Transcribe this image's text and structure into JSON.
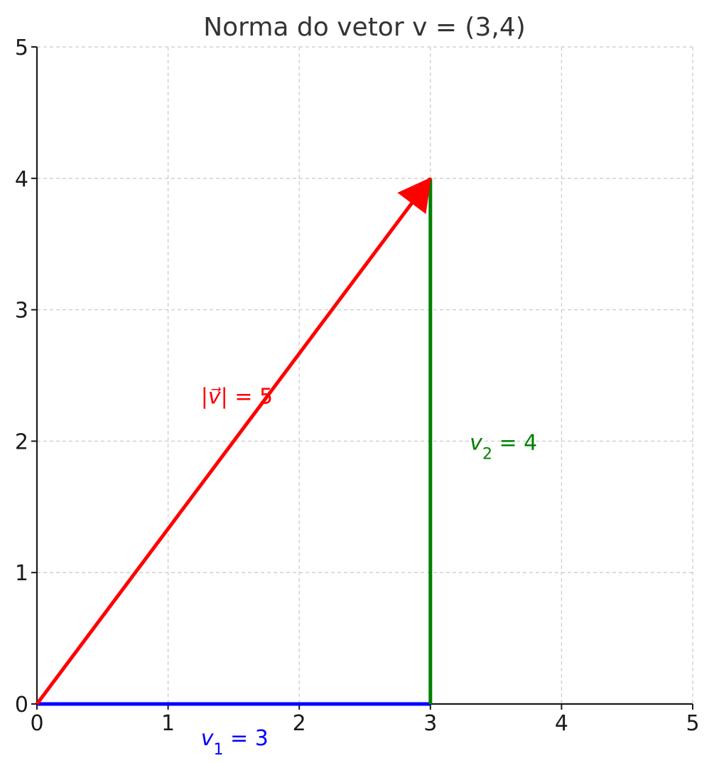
{
  "chart_data": {
    "type": "line",
    "title": "Norma do vetor v = (3,4)",
    "xlabel": "",
    "ylabel": "",
    "xlim": [
      0,
      5
    ],
    "ylim": [
      0,
      5
    ],
    "xticks": [
      0,
      1,
      2,
      3,
      4,
      5
    ],
    "yticks": [
      0,
      1,
      2,
      3,
      4,
      5
    ],
    "grid": true,
    "grid_style": "dashed",
    "series": [
      {
        "kind": "vector",
        "x": [
          0,
          3
        ],
        "y": [
          0,
          4
        ],
        "color": "#ff0000",
        "arrowhead": true
      },
      {
        "kind": "segment",
        "x": [
          0,
          3
        ],
        "y": [
          0,
          0
        ],
        "color": "#0000ff"
      },
      {
        "kind": "segment",
        "x": [
          3,
          3
        ],
        "y": [
          0,
          4
        ],
        "color": "#008000"
      }
    ],
    "annotations": [
      {
        "id": "norm",
        "label_parts": [
          "|",
          "v⃗",
          "| = 5"
        ],
        "x": 1.25,
        "y": 2.35,
        "color": "#ff0000"
      },
      {
        "id": "v1",
        "label_parts": [
          "v",
          "1",
          " = 3"
        ],
        "x": 1.25,
        "y": -0.25,
        "color": "#0000ff"
      },
      {
        "id": "v2",
        "label_parts": [
          "v",
          "2",
          " = 4"
        ],
        "x": 3.3,
        "y": 2.0,
        "color": "#008000"
      }
    ]
  },
  "colors": {
    "norm_vector": "#ff0000",
    "x_component": "#0000ff",
    "y_component": "#008000",
    "grid": "#cccccc",
    "axis": "#1a1a1a"
  }
}
